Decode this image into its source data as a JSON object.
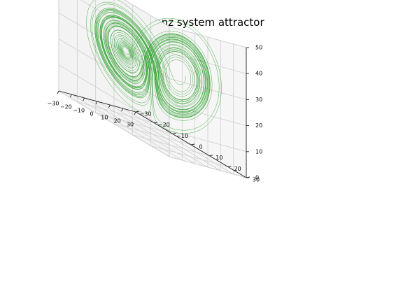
{
  "chart_data": {
    "type": "line",
    "title": "Lorenz system attractor",
    "xlim": [
      -30,
      30
    ],
    "ylim": [
      -30,
      30
    ],
    "zlim": [
      0,
      50
    ],
    "x_ticks": [
      "−30",
      "−20",
      "−10",
      "0",
      "10",
      "20",
      "30"
    ],
    "y_ticks": [
      "−30",
      "−20",
      "−10",
      "0",
      "10",
      "20",
      "30"
    ],
    "z_ticks": [
      "0",
      "10",
      "20",
      "30",
      "40",
      "50"
    ],
    "grid": true,
    "series": [
      {
        "color": "#2ca02c"
      }
    ]
  }
}
